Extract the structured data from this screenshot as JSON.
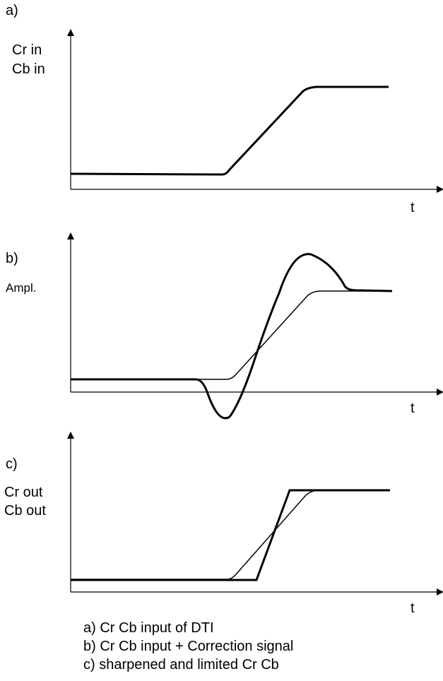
{
  "panels": {
    "a": {
      "tag": "a)",
      "ylabel_1": "Cr in",
      "ylabel_2": "Cb in",
      "xlabel": "t"
    },
    "b": {
      "tag": "b)",
      "ylabel_1": "Ampl.",
      "xlabel": "t"
    },
    "c": {
      "tag": "c)",
      "ylabel_1": "Cr out",
      "ylabel_2": "Cb out",
      "xlabel": "t"
    }
  },
  "captions": [
    "a) Cr Cb input of DTI",
    "b) Cr Cb input + Correction signal",
    "c) sharpened and limited Cr Cb"
  ],
  "colors": {
    "ink": "#000000",
    "background": "#ffffff"
  }
}
